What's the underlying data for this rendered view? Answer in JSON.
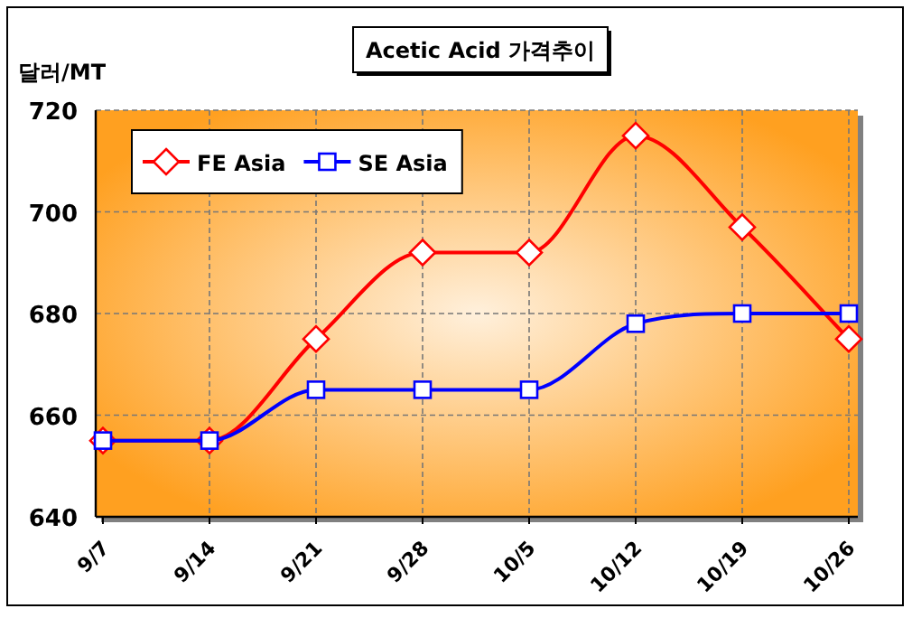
{
  "chart_data": {
    "type": "line",
    "title": "Acetic Acid 가격추이",
    "ylabel": "달러/MT",
    "categories": [
      "9/7",
      "9/14",
      "9/21",
      "9/28",
      "10/5",
      "10/12",
      "10/19",
      "10/26"
    ],
    "series": [
      {
        "name": "FE Asia",
        "color": "#ff0000",
        "marker": "diamond",
        "values": [
          655,
          655,
          675,
          692,
          692,
          715,
          697,
          675
        ]
      },
      {
        "name": "SE Asia",
        "color": "#0000ff",
        "marker": "square",
        "values": [
          655,
          655,
          665,
          665,
          665,
          678,
          680,
          680
        ]
      }
    ],
    "ylim": [
      640,
      720
    ],
    "yticks": [
      640,
      660,
      680,
      700,
      720
    ],
    "grid": true,
    "legend": "top left"
  }
}
